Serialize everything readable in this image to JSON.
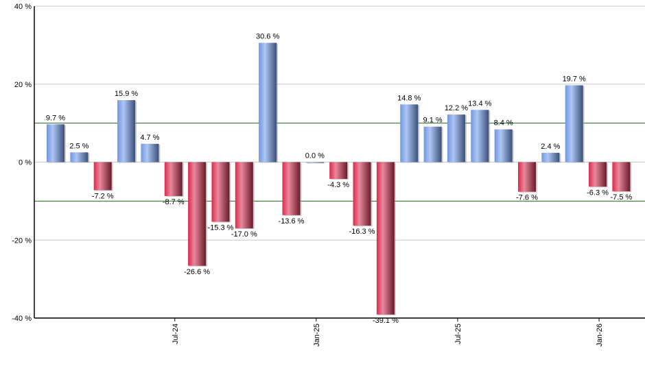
{
  "chart_data": {
    "type": "bar",
    "x": [
      "2024-02",
      "2024-03",
      "2024-04",
      "2024-05",
      "2024-06",
      "2024-07",
      "2024-08",
      "2024-09",
      "2024-10",
      "2024-11",
      "2024-12",
      "2025-01",
      "2025-02",
      "2025-03",
      "2025-04",
      "2025-05",
      "2025-06",
      "2025-07",
      "2025-08",
      "2025-09",
      "2025-10",
      "2025-11",
      "2025-12",
      "2026-01",
      "2026-02"
    ],
    "values": [
      9.7,
      2.5,
      -7.2,
      15.9,
      4.7,
      -8.7,
      -26.6,
      -15.3,
      -17.0,
      30.6,
      -13.6,
      0.0,
      -4.3,
      -16.3,
      -39.1,
      14.8,
      9.1,
      12.2,
      13.4,
      8.4,
      -7.6,
      2.4,
      19.7,
      -6.3,
      -7.5
    ],
    "data_labels": [
      "9.7 %",
      "2.5 %",
      "-7.2 %",
      "15.9 %",
      "4.7 %",
      "-8.7 %",
      "-26.6 %",
      "-15.3 %",
      "-17.0 %",
      "30.6 %",
      "-13.6 %",
      "0.0 %",
      "-4.3 %",
      "-16.3 %",
      "-39.1 %",
      "14.8 %",
      "9.1 %",
      "12.2 %",
      "13.4 %",
      "8.4 %",
      "-7.6 %",
      "2.4 %",
      "19.7 %",
      "-6.3 %",
      "-7.5 %"
    ],
    "x_ticks": [
      {
        "index": 5,
        "label": "Jul-24"
      },
      {
        "index": 11,
        "label": "Jan-25"
      },
      {
        "index": 17,
        "label": "Jul-25"
      },
      {
        "index": 23,
        "label": "Jan-26"
      }
    ],
    "y_ticks": [
      {
        "value": 40,
        "label": "40 %"
      },
      {
        "value": 20,
        "label": "20 %"
      },
      {
        "value": 0,
        "label": "0 %"
      },
      {
        "value": -20,
        "label": "-20 %"
      },
      {
        "value": -40,
        "label": "-40 %"
      }
    ],
    "ylim": [
      -40,
      40
    ],
    "grid": true,
    "reference_lines": [
      10,
      -10
    ],
    "colors": {
      "positive": "#7fa6e8",
      "negative": "#d8304f",
      "reference_line": "#1a6b1a",
      "grid": "#c8c8c8"
    }
  }
}
